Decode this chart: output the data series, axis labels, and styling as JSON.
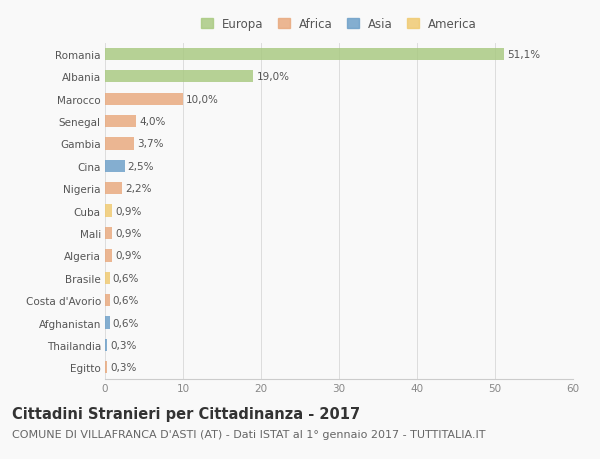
{
  "countries": [
    "Romania",
    "Albania",
    "Marocco",
    "Senegal",
    "Gambia",
    "Cina",
    "Nigeria",
    "Cuba",
    "Mali",
    "Algeria",
    "Brasile",
    "Costa d'Avorio",
    "Afghanistan",
    "Thailandia",
    "Egitto"
  ],
  "values": [
    51.1,
    19.0,
    10.0,
    4.0,
    3.7,
    2.5,
    2.2,
    0.9,
    0.9,
    0.9,
    0.6,
    0.6,
    0.6,
    0.3,
    0.3
  ],
  "labels": [
    "51,1%",
    "19,0%",
    "10,0%",
    "4,0%",
    "3,7%",
    "2,5%",
    "2,2%",
    "0,9%",
    "0,9%",
    "0,9%",
    "0,6%",
    "0,6%",
    "0,6%",
    "0,3%",
    "0,3%"
  ],
  "colors": [
    "#a8c97f",
    "#a8c97f",
    "#e8a87c",
    "#e8a87c",
    "#e8a87c",
    "#6b9ec7",
    "#e8a87c",
    "#f0c96e",
    "#e8a87c",
    "#e8a87c",
    "#f0c96e",
    "#e8a87c",
    "#6b9ec7",
    "#6b9ec7",
    "#e8a87c"
  ],
  "continent_colors": {
    "Europa": "#a8c97f",
    "Africa": "#e8a87c",
    "Asia": "#6b9ec7",
    "America": "#f0c96e"
  },
  "xlim": [
    0,
    60
  ],
  "xticks": [
    0,
    10,
    20,
    30,
    40,
    50,
    60
  ],
  "title": "Cittadini Stranieri per Cittadinanza - 2017",
  "subtitle": "COMUNE DI VILLAFRANCA D'ASTI (AT) - Dati ISTAT al 1° gennaio 2017 - TUTTITALIA.IT",
  "background_color": "#f9f9f9",
  "bar_height": 0.55,
  "title_fontsize": 10.5,
  "subtitle_fontsize": 8,
  "label_fontsize": 7.5,
  "tick_fontsize": 7.5,
  "legend_fontsize": 8.5
}
